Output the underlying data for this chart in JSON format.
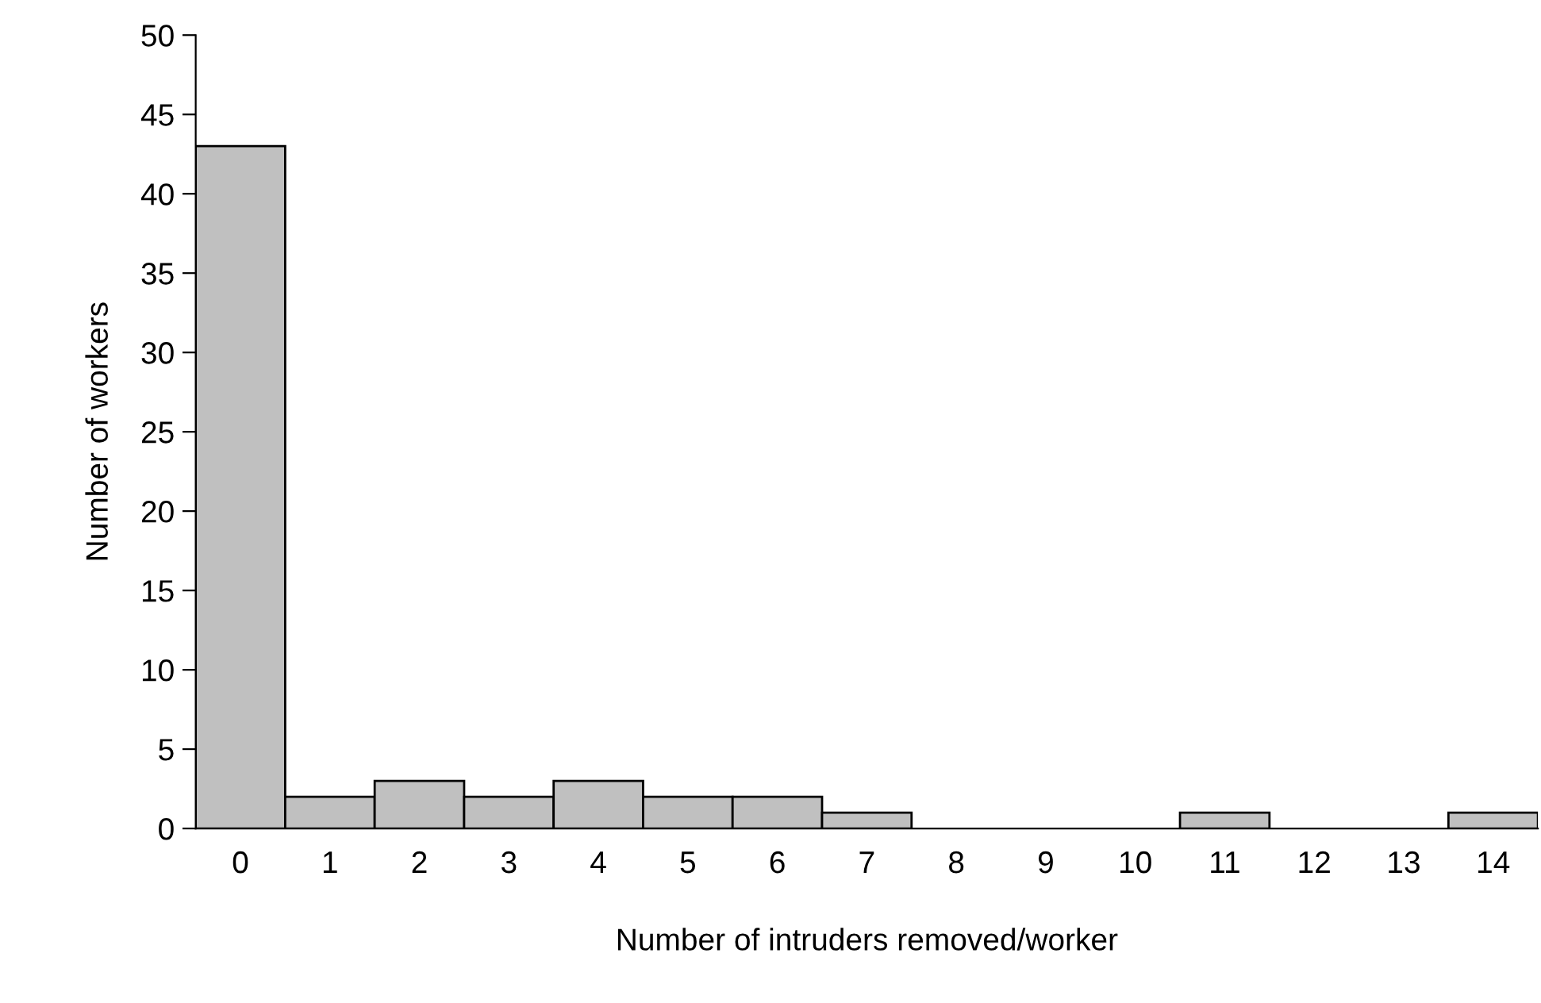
{
  "chart_data": {
    "type": "bar",
    "xlabel": "Number of intruders removed/worker",
    "ylabel": "Number of workers",
    "categories": [
      "0",
      "1",
      "2",
      "3",
      "4",
      "5",
      "6",
      "7",
      "8",
      "9",
      "10",
      "11",
      "12",
      "13",
      "14"
    ],
    "values": [
      43,
      2,
      3,
      2,
      3,
      2,
      2,
      1,
      0,
      0,
      0,
      1,
      0,
      0,
      1
    ],
    "color": "#c0c0c0",
    "ylim": [
      0,
      50
    ],
    "yticks": [
      0,
      5,
      10,
      15,
      20,
      25,
      30,
      35,
      40,
      45,
      50
    ],
    "grid": false,
    "legend": false
  }
}
